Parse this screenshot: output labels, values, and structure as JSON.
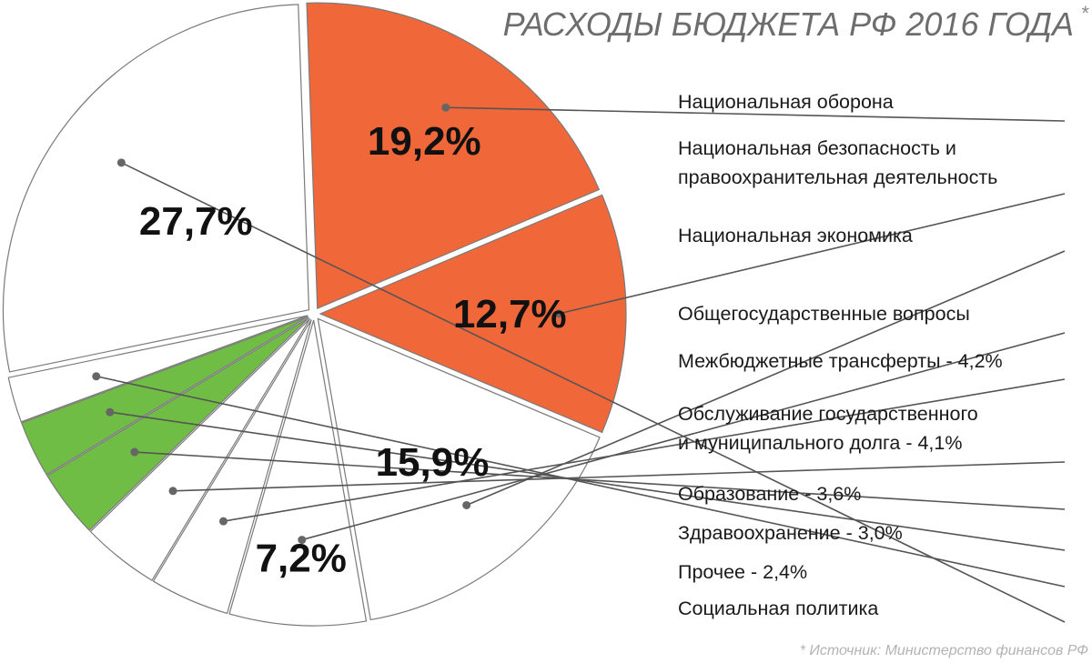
{
  "title": "РАСХОДЫ БЮДЖЕТА РФ 2016 ГОДА",
  "title_mark": "*",
  "source_note": "* Источник: Министерство финансов РФ",
  "colors": {
    "highlight_red": "#f0673a",
    "highlight_green": "#6fbd45",
    "neutral": "#ffffff",
    "outline": "#7a7a7a",
    "title": "#6d6d6d"
  },
  "chart_data": {
    "type": "pie",
    "title": "РАСХОДЫ БЮДЖЕТА РФ 2016 ГОДА",
    "unit": "%",
    "slices": [
      {
        "name": "Национальная оборона",
        "value": 19.2,
        "label": "19,2%",
        "color": "#f0673a"
      },
      {
        "name": "Национальная безопасность и правоохранительная деятельность",
        "value": 12.7,
        "label": "12,7%",
        "color": "#f0673a"
      },
      {
        "name": "Национальная экономика",
        "value": 15.9,
        "label": "15,9%",
        "color": "#ffffff"
      },
      {
        "name": "Общегосударственные вопросы",
        "value": 7.2,
        "label": "7,2%",
        "color": "#ffffff"
      },
      {
        "name": "Межбюджетные трансферты - 4,2%",
        "value": 4.2,
        "label": "",
        "color": "#ffffff"
      },
      {
        "name": "Обслуживание государственного и муниципального долга - 4,1%",
        "value": 4.1,
        "label": "",
        "color": "#ffffff"
      },
      {
        "name": "Образование - 3,6%",
        "value": 3.6,
        "label": "",
        "color": "#6fbd45"
      },
      {
        "name": "Здравоохранение - 3,0%",
        "value": 3.0,
        "label": "",
        "color": "#6fbd45"
      },
      {
        "name": "Прочее - 2,4%",
        "value": 2.4,
        "label": "",
        "color": "#ffffff"
      },
      {
        "name": "Социальная политика",
        "value": 27.7,
        "label": "27,7%",
        "color": "#ffffff"
      }
    ],
    "legend": [
      {
        "lines": [
          "Национальная оборона"
        ]
      },
      {
        "lines": [
          "Национальная безопасность и",
          "правоохранительная деятельность"
        ]
      },
      {
        "lines": [
          "Национальная экономика"
        ]
      },
      {
        "lines": [
          "Общегосударственные вопросы"
        ]
      },
      {
        "lines": [
          "Межбюджетные трансферты - 4,2%"
        ]
      },
      {
        "lines": [
          "Обслуживание государственного",
          "и муниципального долга - 4,1%"
        ]
      },
      {
        "lines": [
          "Образование - 3,6%"
        ]
      },
      {
        "lines": [
          "Здравоохранение - 3,0%"
        ]
      },
      {
        "lines": [
          "Прочее - 2,4%"
        ]
      },
      {
        "lines": [
          "Социальная политика"
        ]
      }
    ]
  }
}
